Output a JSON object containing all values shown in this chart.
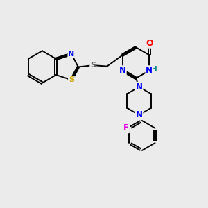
{
  "bg_color": "#ebebeb",
  "bond_color": "#000000",
  "bond_width": 1.4,
  "figsize": [
    3.0,
    3.0
  ],
  "dpi": 100,
  "atom_colors": {
    "N": "#0000ff",
    "O": "#ff0000",
    "S_yellow": "#ccaa00",
    "S_link": "#555555",
    "F": "#dd00dd",
    "H": "#008888",
    "C": "#000000"
  },
  "xlim": [
    0,
    10
  ],
  "ylim": [
    0,
    10
  ]
}
